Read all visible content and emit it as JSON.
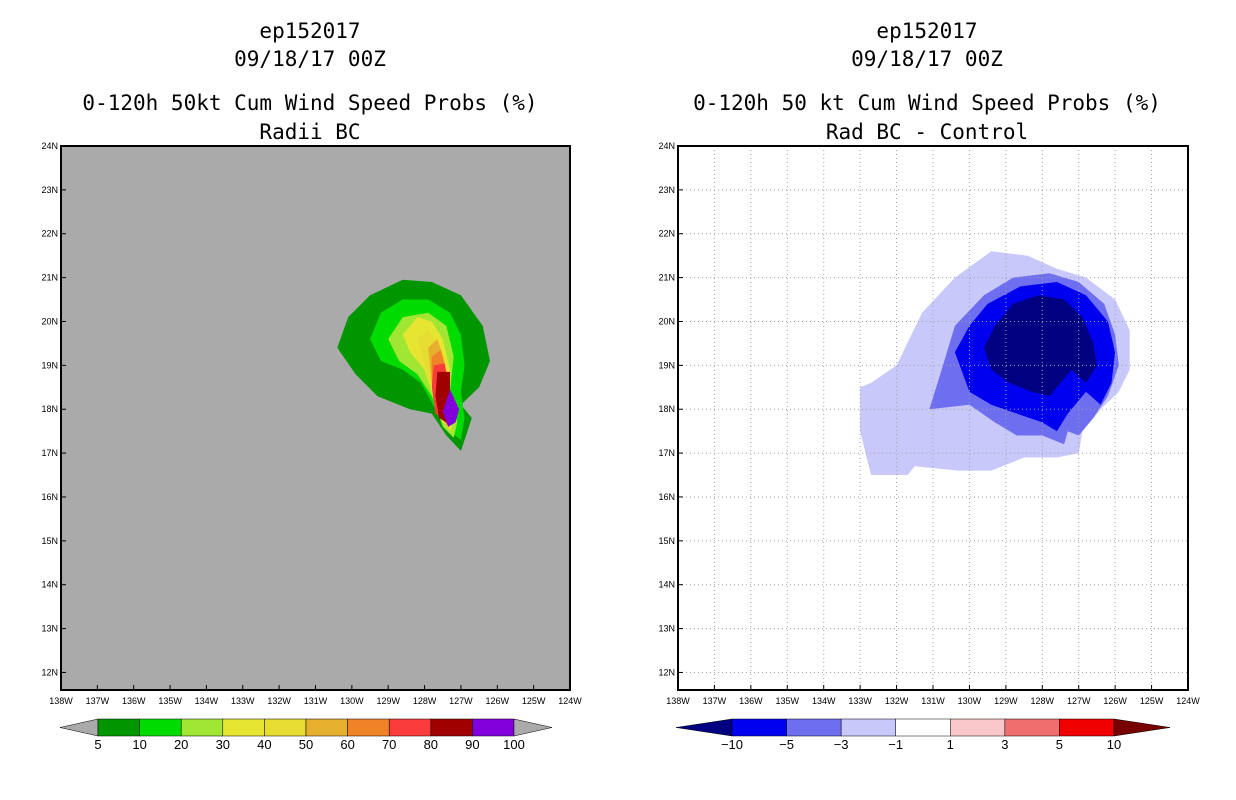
{
  "panels": [
    {
      "storm": "ep152017",
      "date": "09/18/17 00Z",
      "title": "0-120h 50kt Cum Wind Speed Probs (%)",
      "subtitle": "Radii BC"
    },
    {
      "storm": "ep152017",
      "date": "09/18/17 00Z",
      "title": "0-120h 50 kt Cum Wind Speed Probs (%)",
      "subtitle": "Rad BC - Control"
    }
  ],
  "chart_data": [
    {
      "type": "heatmap",
      "title": "0-120h 50kt Cum Wind Speed Probs (%)",
      "subtitle": "Radii BC",
      "xlim": [
        -138,
        -124
      ],
      "ylim": [
        11.6,
        24
      ],
      "x_ticks": [
        "138W",
        "137W",
        "136W",
        "135W",
        "134W",
        "133W",
        "132W",
        "131W",
        "130W",
        "129W",
        "128W",
        "127W",
        "126W",
        "125W",
        "124W"
      ],
      "y_ticks": [
        "12N",
        "13N",
        "14N",
        "15N",
        "16N",
        "17N",
        "18N",
        "19N",
        "20N",
        "21N",
        "22N",
        "23N",
        "24N"
      ],
      "background_color": "#aaaaaa",
      "grid": false,
      "colorbar": {
        "labels": [
          "5",
          "10",
          "20",
          "30",
          "40",
          "50",
          "60",
          "70",
          "80",
          "90",
          "100"
        ],
        "colors": [
          "#009600",
          "#00dc00",
          "#a0e632",
          "#e6e632",
          "#e6dc32",
          "#e6af2d",
          "#f08228",
          "#fa3c3c",
          "#a00000",
          "#8200dc"
        ],
        "under_color": "#aaaaaa",
        "over_color": "#aaaaaa"
      },
      "contours": [
        {
          "level": 5,
          "color": "#009600",
          "points": [
            [
              -130.4,
              19.4
            ],
            [
              -130.1,
              20.1
            ],
            [
              -129.5,
              20.6
            ],
            [
              -128.6,
              20.95
            ],
            [
              -127.8,
              20.9
            ],
            [
              -127.0,
              20.6
            ],
            [
              -126.4,
              19.9
            ],
            [
              -126.2,
              19.1
            ],
            [
              -126.5,
              18.5
            ],
            [
              -127.0,
              18.1
            ],
            [
              -126.7,
              17.8
            ],
            [
              -126.9,
              17.3
            ],
            [
              -127.0,
              17.05
            ],
            [
              -127.4,
              17.4
            ],
            [
              -127.8,
              17.9
            ],
            [
              -128.4,
              18.0
            ],
            [
              -129.3,
              18.3
            ],
            [
              -129.9,
              18.8
            ]
          ]
        },
        {
          "level": 10,
          "color": "#00dc00",
          "points": [
            [
              -129.5,
              19.6
            ],
            [
              -129.2,
              20.2
            ],
            [
              -128.6,
              20.5
            ],
            [
              -127.9,
              20.5
            ],
            [
              -127.3,
              20.2
            ],
            [
              -127.0,
              19.7
            ],
            [
              -126.9,
              19.0
            ],
            [
              -127.0,
              18.4
            ],
            [
              -126.9,
              17.8
            ],
            [
              -127.0,
              17.3
            ],
            [
              -127.3,
              17.5
            ],
            [
              -127.7,
              18.0
            ],
            [
              -128.1,
              18.6
            ],
            [
              -128.6,
              18.9
            ],
            [
              -129.2,
              19.1
            ]
          ]
        },
        {
          "level": 20,
          "color": "#a0e632",
          "points": [
            [
              -129.0,
              19.6
            ],
            [
              -128.6,
              20.1
            ],
            [
              -127.9,
              20.2
            ],
            [
              -127.4,
              19.9
            ],
            [
              -127.2,
              19.2
            ],
            [
              -127.3,
              18.4
            ],
            [
              -127.1,
              17.7
            ],
            [
              -127.2,
              17.35
            ],
            [
              -127.5,
              17.6
            ],
            [
              -127.8,
              18.3
            ],
            [
              -128.2,
              18.8
            ],
            [
              -128.7,
              19.1
            ]
          ]
        },
        {
          "level": 30,
          "color": "#e6e632",
          "points": [
            [
              -128.6,
              19.7
            ],
            [
              -128.2,
              20.1
            ],
            [
              -127.8,
              20.0
            ],
            [
              -127.5,
              19.6
            ],
            [
              -127.3,
              18.9
            ],
            [
              -127.3,
              18.1
            ],
            [
              -127.25,
              17.5
            ],
            [
              -127.5,
              17.7
            ],
            [
              -127.8,
              18.4
            ],
            [
              -128.0,
              18.9
            ],
            [
              -128.4,
              19.3
            ]
          ]
        },
        {
          "level": 40,
          "color": "#e6dc32",
          "points": [
            [
              -128.2,
              19.6
            ],
            [
              -127.9,
              19.8
            ],
            [
              -127.6,
              19.4
            ],
            [
              -127.4,
              18.7
            ],
            [
              -127.3,
              17.9
            ],
            [
              -127.3,
              17.5
            ],
            [
              -127.55,
              17.8
            ],
            [
              -127.8,
              18.5
            ],
            [
              -128.0,
              19.0
            ]
          ]
        },
        {
          "level": 50,
          "color": "#e6af2d",
          "points": [
            [
              -127.9,
              19.4
            ],
            [
              -127.65,
              19.6
            ],
            [
              -127.45,
              19.1
            ],
            [
              -127.35,
              18.3
            ],
            [
              -127.3,
              17.6
            ],
            [
              -127.6,
              17.9
            ],
            [
              -127.8,
              18.6
            ]
          ]
        },
        {
          "level": 60,
          "color": "#f08228",
          "points": [
            [
              -127.8,
              19.2
            ],
            [
              -127.55,
              19.35
            ],
            [
              -127.4,
              18.8
            ],
            [
              -127.3,
              18.0
            ],
            [
              -127.35,
              17.6
            ],
            [
              -127.65,
              17.95
            ],
            [
              -127.8,
              18.6
            ]
          ]
        },
        {
          "level": 70,
          "color": "#fa3c3c",
          "points": [
            [
              -127.75,
              19.0
            ],
            [
              -127.45,
              19.05
            ],
            [
              -127.3,
              18.4
            ],
            [
              -127.3,
              17.7
            ],
            [
              -127.7,
              17.9
            ],
            [
              -127.8,
              18.5
            ]
          ]
        },
        {
          "level": 80,
          "color": "#a00000",
          "points": [
            [
              -127.65,
              18.85
            ],
            [
              -127.3,
              18.85
            ],
            [
              -127.3,
              17.65
            ],
            [
              -127.6,
              17.8
            ],
            [
              -127.7,
              18.3
            ]
          ]
        },
        {
          "level": 90,
          "color": "#8200dc",
          "points": [
            [
              -127.3,
              18.45
            ],
            [
              -127.05,
              18.0
            ],
            [
              -127.15,
              17.7
            ],
            [
              -127.35,
              17.6
            ],
            [
              -127.5,
              17.95
            ]
          ]
        }
      ]
    },
    {
      "type": "heatmap",
      "title": "0-120h 50 kt Cum Wind Speed Probs (%)",
      "subtitle": "Rad BC - Control",
      "xlim": [
        -138,
        -124
      ],
      "ylim": [
        11.6,
        24
      ],
      "x_ticks": [
        "138W",
        "137W",
        "136W",
        "135W",
        "134W",
        "133W",
        "132W",
        "131W",
        "130W",
        "129W",
        "128W",
        "127W",
        "126W",
        "125W",
        "124W"
      ],
      "y_ticks": [
        "12N",
        "13N",
        "14N",
        "15N",
        "16N",
        "17N",
        "18N",
        "19N",
        "20N",
        "21N",
        "22N",
        "23N",
        "24N"
      ],
      "background_color": "#ffffff",
      "grid": true,
      "colorbar": {
        "labels": [
          "-10",
          "-5",
          "-3",
          "-1",
          "1",
          "3",
          "5",
          "10"
        ],
        "colors": [
          "#0000f0",
          "#6e6ef0",
          "#c8c8fa",
          "#ffffff",
          "#fac8c8",
          "#f06e6e",
          "#f00000"
        ],
        "under_color": "#000080",
        "over_color": "#780000"
      },
      "contours": [
        {
          "level": -1,
          "color": "#c8c8fa",
          "points": [
            [
              -133.0,
              18.5
            ],
            [
              -132.7,
              18.6
            ],
            [
              -132.0,
              19.0
            ],
            [
              -131.3,
              20.2
            ],
            [
              -130.4,
              21.0
            ],
            [
              -129.4,
              21.6
            ],
            [
              -128.4,
              21.5
            ],
            [
              -127.6,
              21.2
            ],
            [
              -126.8,
              21.0
            ],
            [
              -126.0,
              20.5
            ],
            [
              -125.6,
              19.8
            ],
            [
              -125.6,
              18.9
            ],
            [
              -125.9,
              18.4
            ],
            [
              -126.4,
              18.0
            ],
            [
              -126.9,
              17.5
            ],
            [
              -127.0,
              17.0
            ],
            [
              -127.6,
              16.9
            ],
            [
              -128.5,
              16.9
            ],
            [
              -129.4,
              16.6
            ],
            [
              -130.3,
              16.6
            ],
            [
              -131.5,
              16.7
            ],
            [
              -131.7,
              16.5
            ],
            [
              -132.7,
              16.5
            ],
            [
              -133.0,
              17.5
            ]
          ]
        },
        {
          "level": -3,
          "color": "#6e6ef0",
          "points": [
            [
              -131.1,
              18.0
            ],
            [
              -130.8,
              18.8
            ],
            [
              -130.4,
              19.9
            ],
            [
              -129.6,
              20.6
            ],
            [
              -128.8,
              21.0
            ],
            [
              -127.8,
              21.1
            ],
            [
              -127.0,
              20.9
            ],
            [
              -126.3,
              20.4
            ],
            [
              -126.0,
              19.7
            ],
            [
              -125.9,
              19.0
            ],
            [
              -126.2,
              18.3
            ],
            [
              -126.6,
              17.8
            ],
            [
              -127.0,
              17.4
            ],
            [
              -127.3,
              17.5
            ],
            [
              -127.4,
              17.2
            ],
            [
              -128.0,
              17.4
            ],
            [
              -128.7,
              17.4
            ],
            [
              -129.3,
              17.7
            ],
            [
              -130.0,
              18.1
            ]
          ]
        },
        {
          "level": -5,
          "color": "#0000f0",
          "points": [
            [
              -130.4,
              19.3
            ],
            [
              -130.0,
              19.9
            ],
            [
              -129.5,
              20.4
            ],
            [
              -128.6,
              20.8
            ],
            [
              -127.6,
              20.9
            ],
            [
              -126.8,
              20.6
            ],
            [
              -126.2,
              20.0
            ],
            [
              -126.0,
              19.3
            ],
            [
              -126.1,
              18.6
            ],
            [
              -126.4,
              18.1
            ],
            [
              -126.8,
              18.4
            ],
            [
              -127.0,
              18.2
            ],
            [
              -127.3,
              17.9
            ],
            [
              -127.6,
              17.5
            ],
            [
              -128.0,
              17.7
            ],
            [
              -128.7,
              17.9
            ],
            [
              -129.4,
              18.1
            ],
            [
              -130.0,
              18.4
            ]
          ]
        },
        {
          "level": -10,
          "color": "#000080",
          "points": [
            [
              -129.6,
              19.4
            ],
            [
              -129.3,
              19.9
            ],
            [
              -128.8,
              20.4
            ],
            [
              -128.1,
              20.6
            ],
            [
              -127.4,
              20.5
            ],
            [
              -126.9,
              20.1
            ],
            [
              -126.6,
              19.5
            ],
            [
              -126.5,
              19.0
            ],
            [
              -126.8,
              18.6
            ],
            [
              -127.2,
              18.9
            ],
            [
              -127.5,
              18.6
            ],
            [
              -127.8,
              18.3
            ],
            [
              -128.3,
              18.4
            ],
            [
              -128.9,
              18.6
            ],
            [
              -129.4,
              18.9
            ]
          ]
        }
      ]
    }
  ]
}
